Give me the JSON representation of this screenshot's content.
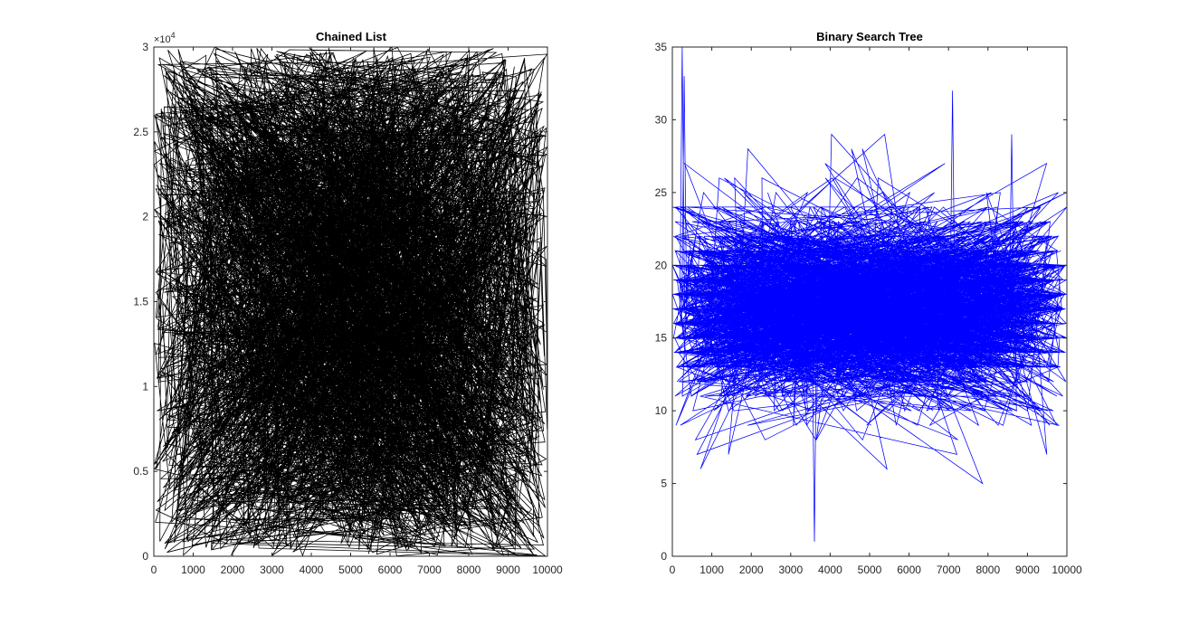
{
  "figure": {
    "background": "#ffffff"
  },
  "chart_data": [
    {
      "type": "line",
      "title": "Chained List",
      "xlabel": "",
      "ylabel": "",
      "xlim": [
        0,
        10000
      ],
      "ylim": [
        0,
        30000
      ],
      "xticks": [
        0,
        1000,
        2000,
        3000,
        4000,
        5000,
        6000,
        7000,
        8000,
        9000,
        10000
      ],
      "xtick_labels": [
        "0",
        "1000",
        "2000",
        "3000",
        "4000",
        "5000",
        "6000",
        "7000",
        "8000",
        "9000",
        "10000"
      ],
      "yticks": [
        0,
        5000,
        10000,
        15000,
        20000,
        25000,
        30000
      ],
      "ytick_labels": [
        "0",
        "0.5",
        "1",
        "1.5",
        "2",
        "2.5",
        "3"
      ],
      "y_exponent_label": "×10",
      "y_exponent_power": "4",
      "grid": false,
      "color": "#000000",
      "series": [
        {
          "style": "dense random walk over all points",
          "n_points": 10000,
          "x_range": [
            0,
            10000
          ],
          "y_range": [
            0,
            30000
          ],
          "y_distribution": "uniform"
        }
      ]
    },
    {
      "type": "line",
      "title": "Binary Search Tree",
      "xlabel": "",
      "ylabel": "",
      "xlim": [
        0,
        10000
      ],
      "ylim": [
        0,
        35
      ],
      "xticks": [
        0,
        1000,
        2000,
        3000,
        4000,
        5000,
        6000,
        7000,
        8000,
        9000,
        10000
      ],
      "xtick_labels": [
        "0",
        "1000",
        "2000",
        "3000",
        "4000",
        "5000",
        "6000",
        "7000",
        "8000",
        "9000",
        "10000"
      ],
      "yticks": [
        0,
        5,
        10,
        15,
        20,
        25,
        30,
        35
      ],
      "ytick_labels": [
        "0",
        "5",
        "10",
        "15",
        "20",
        "25",
        "30",
        "35"
      ],
      "grid": false,
      "color": "#0000ff",
      "series": [
        {
          "style": "dense random walk over all points",
          "n_points": 10000,
          "x_range": [
            0,
            10000
          ],
          "y_range": [
            1,
            35
          ],
          "y_typical_range": [
            9,
            25
          ],
          "y_center": 17,
          "notable_points": [
            {
              "x": 250,
              "y": 35
            },
            {
              "x": 300,
              "y": 33
            },
            {
              "x": 3600,
              "y": 1
            },
            {
              "x": 7100,
              "y": 32
            },
            {
              "x": 8600,
              "y": 29
            }
          ]
        }
      ]
    }
  ]
}
